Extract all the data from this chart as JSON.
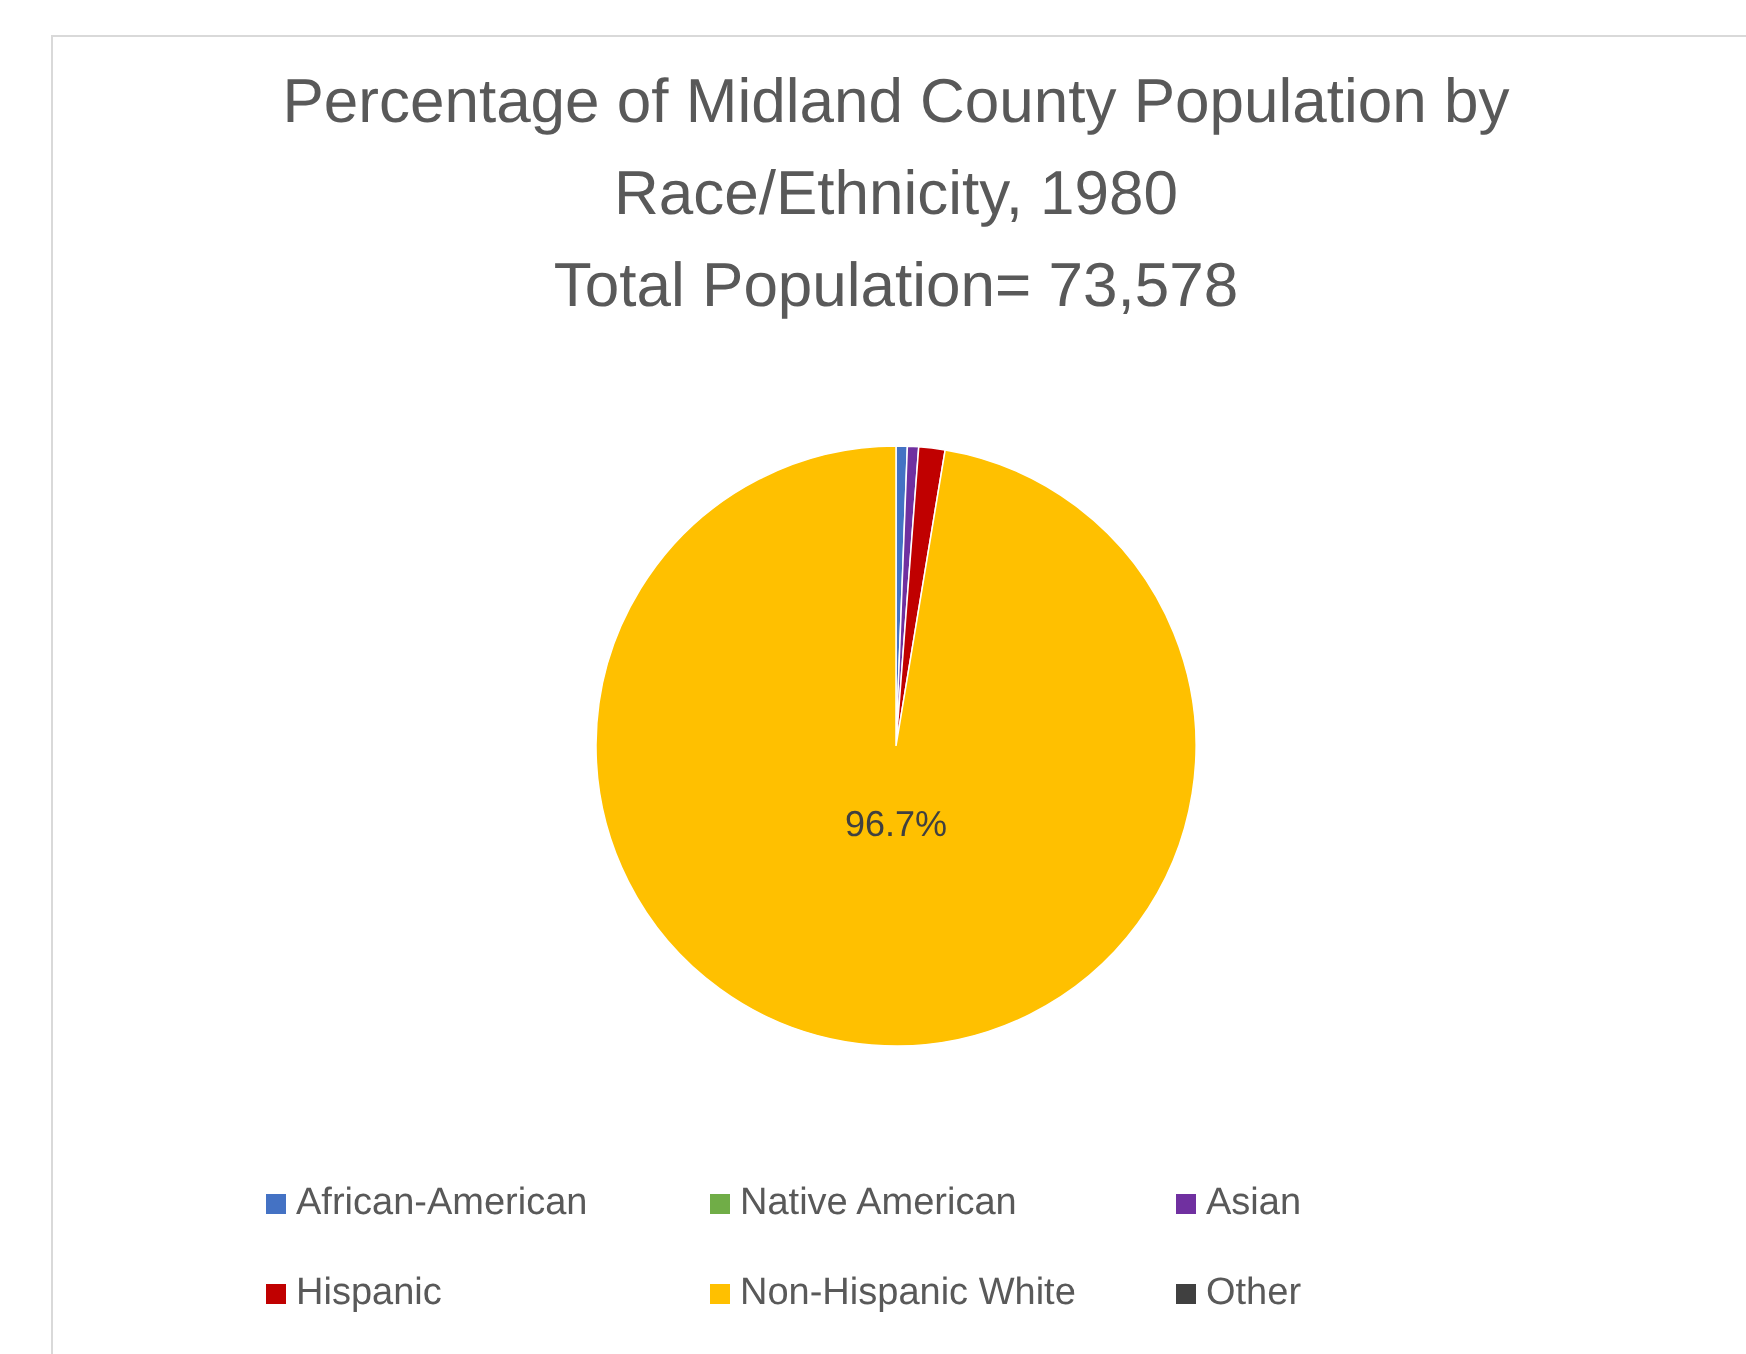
{
  "chart_data": {
    "type": "pie",
    "title": "Percentage of Midland County Population by Race/Ethnicity, 1980",
    "subtitle": "Total Population= 73,578",
    "categories": [
      "African-American",
      "Native American",
      "Asian",
      "Hispanic",
      "Non-Hispanic White",
      "Other"
    ],
    "values": [
      0.6,
      null,
      0.6,
      1.4,
      96.7,
      null
    ],
    "colors": [
      "#4472c4",
      "#70ad47",
      "#7030a0",
      "#c00000",
      "#ffc000",
      "#404040"
    ],
    "value_labels": [
      null,
      null,
      null,
      null,
      "96.7%",
      null
    ],
    "legend": "bottom"
  }
}
